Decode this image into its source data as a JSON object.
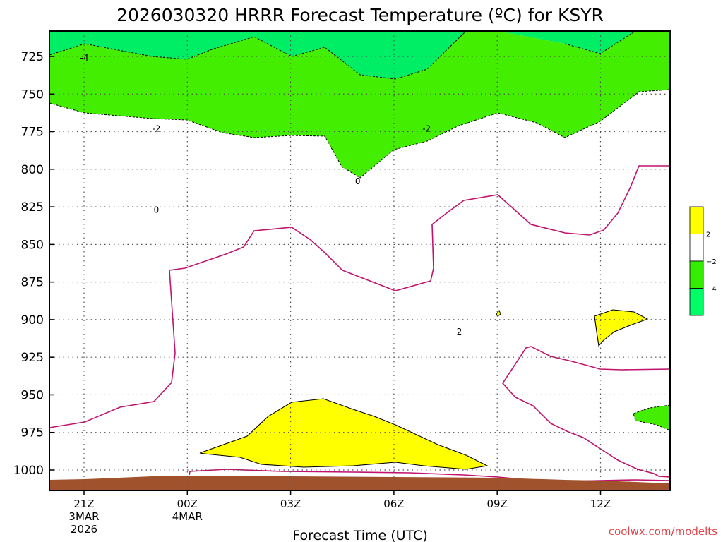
{
  "chart_data": {
    "type": "contour",
    "title": "2026030320 HRRR Forecast Temperature (ºC) for KSYR",
    "xlabel": "Forecast Time (UTC)",
    "ylabel": "",
    "credit": "coolwx.com/modelts",
    "y_axis": {
      "quantity": "pressure (hPa)",
      "ticks": [
        "725",
        "750",
        "775",
        "800",
        "825",
        "850",
        "875",
        "900",
        "925",
        "950",
        "975",
        "1000"
      ],
      "inverted": true,
      "range": [
        1012,
        709
      ]
    },
    "x_axis": {
      "range": [
        "2026-03-03T20:00Z",
        "2026-03-04T14:00Z"
      ],
      "ticks": [
        {
          "label": "21Z",
          "sub1": "3MAR",
          "sub2": "2026"
        },
        {
          "label": "00Z",
          "sub1": "4MAR",
          "sub2": ""
        },
        {
          "label": "03Z",
          "sub1": "",
          "sub2": ""
        },
        {
          "label": "06Z",
          "sub1": "",
          "sub2": ""
        },
        {
          "label": "09Z",
          "sub1": "",
          "sub2": ""
        },
        {
          "label": "12Z",
          "sub1": "",
          "sub2": ""
        }
      ]
    },
    "grid": true,
    "contour_labels": [
      {
        "text": "-4",
        "hour": 1.01,
        "p": 726
      },
      {
        "text": "-2",
        "hour": 3.1,
        "p": 773
      },
      {
        "text": "-2",
        "hour": 10.95,
        "p": 773
      },
      {
        "text": "0",
        "hour": 3.1,
        "p": 827
      },
      {
        "text": "0",
        "hour": 8.95,
        "p": 808
      },
      {
        "text": "2",
        "hour": 11.9,
        "p": 908
      }
    ],
    "legend": {
      "placement": "right",
      "bands": [
        {
          "color": "#ffff00",
          "label": "2"
        },
        {
          "color": "#ffffff",
          "label": "−2"
        },
        {
          "color": "#33ee00",
          "label": "−4"
        },
        {
          "color": "#00ff66",
          "label": ""
        }
      ]
    },
    "colors": {
      "warm": "#ffff00",
      "cold": "#44ee00",
      "very_cold": "#00ee66",
      "freezing_line": "#c0126e",
      "ground": "#a0522d"
    }
  }
}
